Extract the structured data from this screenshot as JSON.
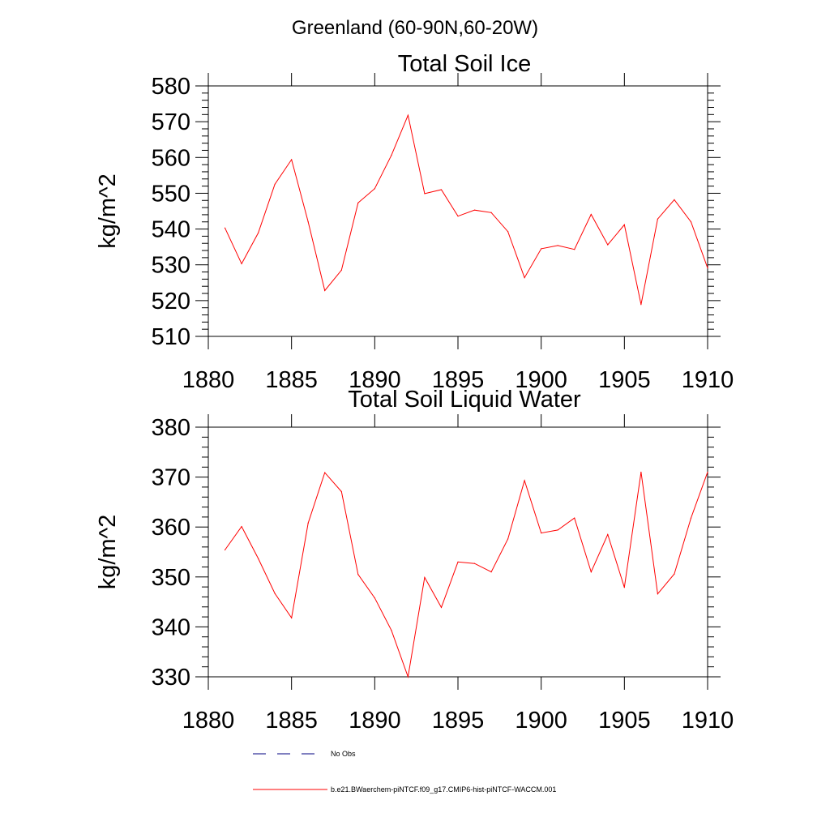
{
  "page_title": "Greenland (60-90N,60-20W)",
  "chart_data": [
    {
      "type": "line",
      "title": "Total Soil Ice",
      "xlabel": "",
      "ylabel": "kg/m^2",
      "xlim": [
        1880,
        1910
      ],
      "ylim": [
        510,
        580
      ],
      "xticks": [
        1880,
        1885,
        1890,
        1895,
        1900,
        1905,
        1910
      ],
      "yticks": [
        510,
        520,
        530,
        540,
        550,
        560,
        570,
        580
      ],
      "grid": false,
      "series": [
        {
          "name": "b.e21.BWaerchem-piNTCF.f09_g17.CMIP6-hist-piNTCF-WACCM.001",
          "color": "#ff0000",
          "x": [
            1881,
            1882,
            1883,
            1884,
            1885,
            1886,
            1887,
            1888,
            1889,
            1890,
            1891,
            1892,
            1893,
            1894,
            1895,
            1896,
            1897,
            1898,
            1899,
            1900,
            1901,
            1902,
            1903,
            1904,
            1905,
            1906,
            1907,
            1908,
            1909,
            1910
          ],
          "values": [
            540.3,
            530.3,
            538.9,
            552.5,
            559.4,
            542.0,
            522.8,
            528.5,
            547.3,
            551.3,
            560.6,
            571.8,
            549.9,
            551.0,
            543.6,
            545.3,
            544.6,
            539.3,
            526.4,
            534.5,
            535.4,
            534.3,
            544.1,
            535.6,
            541.2,
            518.9,
            542.8,
            548.2,
            542.0,
            529.1
          ]
        }
      ]
    },
    {
      "type": "line",
      "title": "Total Soil Liquid Water",
      "xlabel": "",
      "ylabel": "kg/m^2",
      "xlim": [
        1880,
        1910
      ],
      "ylim": [
        330,
        380
      ],
      "xticks": [
        1880,
        1885,
        1890,
        1895,
        1900,
        1905,
        1910
      ],
      "yticks": [
        330,
        340,
        350,
        360,
        370,
        380
      ],
      "grid": false,
      "series": [
        {
          "name": "b.e21.BWaerchem-piNTCF.f09_g17.CMIP6-hist-piNTCF-WACCM.001",
          "color": "#ff0000",
          "x": [
            1881,
            1882,
            1883,
            1884,
            1885,
            1886,
            1887,
            1888,
            1889,
            1890,
            1891,
            1892,
            1893,
            1894,
            1895,
            1896,
            1897,
            1898,
            1899,
            1900,
            1901,
            1902,
            1903,
            1904,
            1905,
            1906,
            1907,
            1908,
            1909,
            1910
          ],
          "values": [
            355.4,
            360.1,
            353.7,
            346.7,
            341.8,
            360.8,
            370.9,
            367.1,
            350.5,
            345.8,
            339.3,
            330.0,
            349.9,
            343.9,
            353.0,
            352.7,
            351.0,
            357.6,
            369.3,
            358.8,
            359.4,
            361.8,
            351.0,
            358.5,
            347.9,
            371.0,
            346.6,
            350.6,
            361.8,
            371.0
          ]
        }
      ]
    }
  ],
  "legend": {
    "placement": "bottom",
    "entries": [
      {
        "label": "No Obs",
        "color": "#000080",
        "style": "dashed"
      },
      {
        "label": "b.e21.BWaerchem-piNTCF.f09_g17.CMIP6-hist-piNTCF-WACCM.001",
        "color": "#ff0000",
        "style": "solid"
      }
    ]
  }
}
